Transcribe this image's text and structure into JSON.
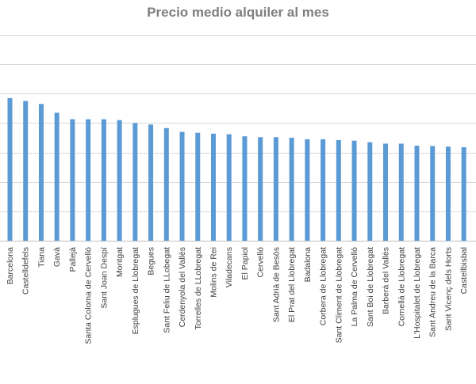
{
  "chart_data": {
    "type": "bar",
    "title": "Precio medio alquiler al mes",
    "xlabel": "",
    "ylabel": "",
    "grid": true,
    "legend": "none",
    "bar_color": "#5b9bd5",
    "categories": [
      "Barcelona",
      "Castelldefels",
      "Tiana",
      "Gavà",
      "Pallejà",
      "Santa Coloma de Cervelló",
      "Sant Joan Despí",
      "Montgat",
      "Esplugues de Llobregat",
      "Begues",
      "Sant Feliu de LLobegat",
      "Cerdenyola del Vallès",
      "Torrelles de LLobregat",
      "Molins de Rei",
      "Viladecans",
      "El Papiol",
      "Cervelló",
      "Sant Adrià de Besòs",
      "El Prat del Llobregat",
      "Badalona",
      "Corbera de Llobregat",
      "Sant Climent de Llobregat",
      "La Palma de Cervelló",
      "Sant Boi de Llobregat",
      "Barberà del Vallès",
      "Cornellà de Llobregat",
      "L'Hospitalet de Llobregat",
      "Sant Andreu de la Barca",
      "Sant Vicenç dels Horts",
      "Castellbisbal"
    ],
    "values": [
      4.85,
      4.75,
      4.65,
      4.35,
      4.13,
      4.13,
      4.13,
      4.1,
      4.0,
      3.95,
      3.83,
      3.7,
      3.67,
      3.64,
      3.62,
      3.55,
      3.52,
      3.52,
      3.5,
      3.45,
      3.45,
      3.42,
      3.4,
      3.35,
      3.3,
      3.3,
      3.23,
      3.22,
      3.2,
      3.18
    ],
    "ylim": [
      0,
      7
    ],
    "gridline_count": 7
  }
}
